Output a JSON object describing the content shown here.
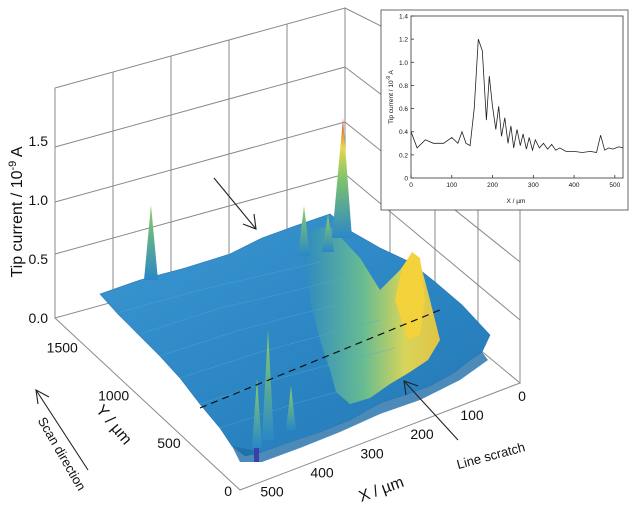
{
  "chart_data": [
    {
      "type": "surface",
      "title": "",
      "zlabel": "Tip current / 10",
      "zlabel_exp": "-9",
      "zlabel_unit": " A",
      "xlabel": "X / µm",
      "ylabel": "Y / µm",
      "zlim": [
        0,
        1.5
      ],
      "xlim": [
        0,
        500
      ],
      "ylim": [
        0,
        1500
      ],
      "z_ticks": [
        "0.0",
        "0.5",
        "1.0",
        "1.5"
      ],
      "x_ticks": [
        "0",
        "100",
        "200",
        "300",
        "400",
        "500"
      ],
      "y_ticks": [
        "0",
        "500",
        "1000",
        "1500"
      ],
      "features": [
        {
          "x": 170,
          "y": 1600,
          "z": 1.6,
          "note": "tall spike"
        },
        {
          "x": 20,
          "y": 800,
          "z": 0.55,
          "note": "yellow ridge along line scratch"
        },
        {
          "x": 390,
          "y": 1250,
          "z": 0.55,
          "note": "small spike"
        },
        {
          "x": 200,
          "y": 1300,
          "z": 0.55,
          "note": "small spike"
        },
        {
          "x": 470,
          "y": 100,
          "z": 0.8,
          "note": "spike near front"
        },
        {
          "x": 500,
          "y": 150,
          "z": 0.7,
          "note": "spike near front"
        }
      ],
      "grid": true
    },
    {
      "type": "line",
      "title": "",
      "xlabel": "X / µm",
      "ylabel": "Tip current / 10",
      "ylabel_exp": "-9",
      "ylabel_unit": " A",
      "xlim": [
        0,
        520
      ],
      "ylim": [
        0,
        1.4
      ],
      "x_ticks": [
        "0",
        "100",
        "200",
        "300",
        "400",
        "500"
      ],
      "y_ticks": [
        "0",
        "0.2",
        "0.4",
        "0.6",
        "0.8",
        "1.0",
        "1.2",
        "1.4"
      ],
      "x": [
        0,
        15,
        35,
        55,
        80,
        100,
        115,
        125,
        135,
        145,
        155,
        165,
        175,
        185,
        192,
        200,
        208,
        215,
        222,
        230,
        238,
        245,
        252,
        260,
        268,
        275,
        283,
        290,
        298,
        305,
        315,
        325,
        335,
        345,
        355,
        365,
        380,
        400,
        420,
        440,
        455,
        465,
        475,
        485,
        495,
        510,
        520
      ],
      "y": [
        0.4,
        0.26,
        0.33,
        0.3,
        0.3,
        0.35,
        0.3,
        0.4,
        0.3,
        0.28,
        0.6,
        1.2,
        1.1,
        0.5,
        0.88,
        0.62,
        0.42,
        0.62,
        0.36,
        0.52,
        0.3,
        0.45,
        0.26,
        0.42,
        0.28,
        0.38,
        0.25,
        0.35,
        0.24,
        0.33,
        0.26,
        0.3,
        0.25,
        0.29,
        0.24,
        0.26,
        0.23,
        0.23,
        0.22,
        0.23,
        0.22,
        0.37,
        0.24,
        0.26,
        0.25,
        0.27,
        0.26
      ],
      "grid": false
    }
  ],
  "annotations": {
    "scan_direction": "Scan direction",
    "line_scratch": "Line scratch"
  },
  "colors": {
    "surface_base": "#2a88c6",
    "surface_mid": "#4fb29a",
    "surface_high": "#e8d84a",
    "spike_top": "#d94a3a",
    "grid": "#8a8a8a"
  }
}
